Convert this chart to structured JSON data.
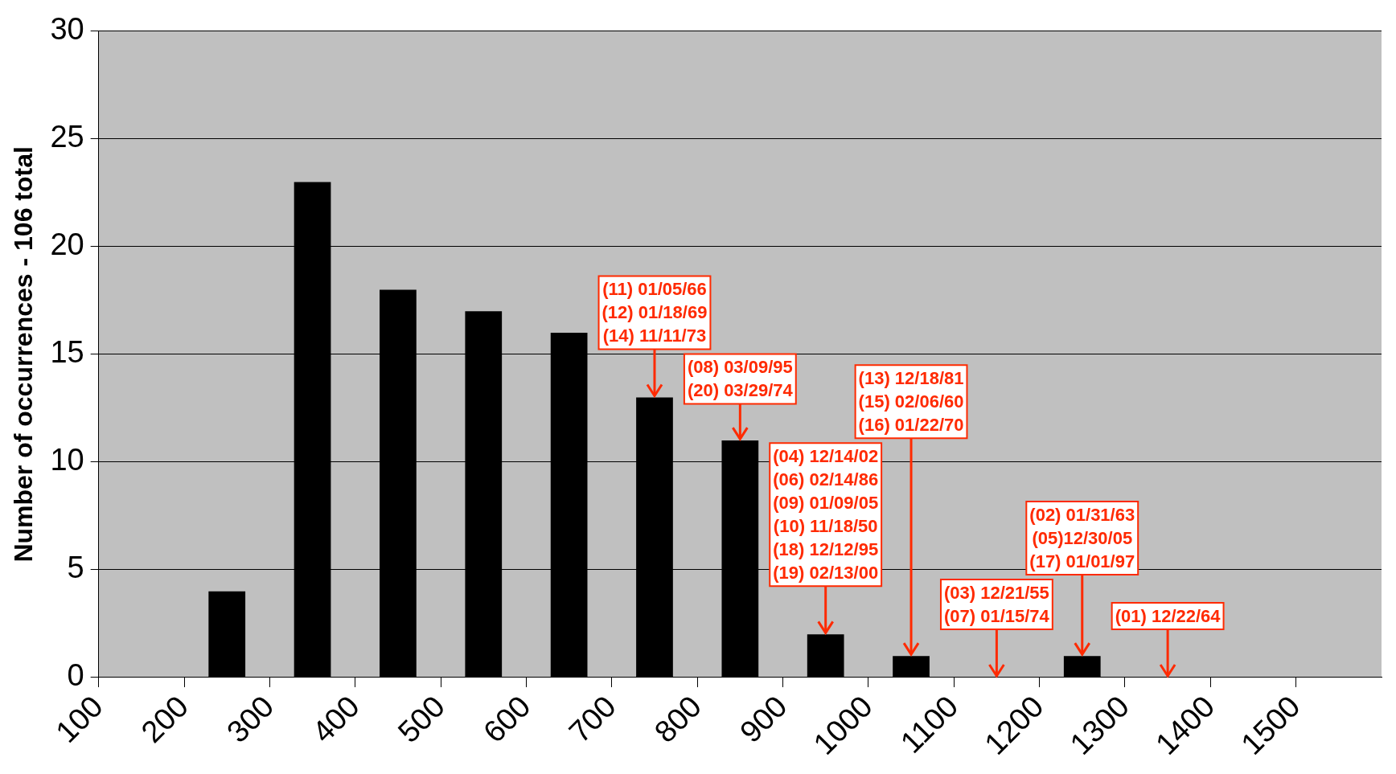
{
  "chart_data": {
    "type": "histogram",
    "ylabel": "Number of occurrences - 106 total",
    "bins": [
      100,
      200,
      300,
      400,
      500,
      600,
      700,
      800,
      900,
      1000,
      1100,
      1200,
      1300,
      1400,
      1500,
      1600
    ],
    "values": [
      0,
      4,
      23,
      18,
      17,
      16,
      13,
      11,
      2,
      1,
      0,
      1,
      0,
      0,
      0
    ],
    "color": "#000000",
    "xlim": [
      100,
      1600
    ],
    "xticks": [
      100,
      200,
      300,
      400,
      500,
      600,
      700,
      800,
      900,
      1000,
      1100,
      1200,
      1300,
      1400,
      1500
    ],
    "ylim": [
      0,
      30
    ],
    "yticks": [
      0,
      5,
      10,
      15,
      20,
      25,
      30
    ],
    "grid": "y",
    "legend": false,
    "annotations": [
      {
        "text": "(11) 01/05/66\n(12) 01/18/69\n(14) 11/11/73",
        "x": 750,
        "y": 13
      },
      {
        "text": "(08) 03/09/95\n(20) 03/29/74",
        "x": 850,
        "y": 11
      },
      {
        "text": "(04) 12/14/02\n(06) 02/14/86\n(09) 01/09/05\n(10) 11/18/50\n(18) 12/12/95\n(19) 02/13/00",
        "x": 950,
        "y": 2
      },
      {
        "text": "(13) 12/18/81\n(15) 02/06/60\n(16) 01/22/70",
        "x": 1050,
        "y": 1
      },
      {
        "text": "(03) 12/21/55\n(07) 01/15/74",
        "x": 1150,
        "y": 0
      },
      {
        "text": "(02) 01/31/63\n(05)12/30/05\n(17) 01/01/97",
        "x": 1250,
        "y": 1
      },
      {
        "text": "(01) 12/22/64",
        "x": 1350,
        "y": 0
      }
    ]
  }
}
